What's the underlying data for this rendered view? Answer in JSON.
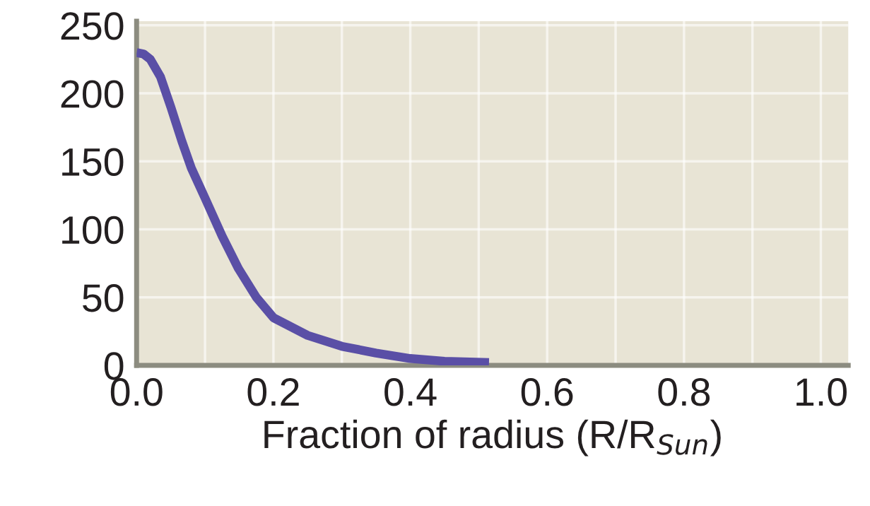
{
  "chart_data": {
    "type": "line",
    "xlabel": "Fraction of radius (R/R$_{Sun}$)",
    "x": [
      0,
      0.01,
      0.02,
      0.035,
      0.05,
      0.066,
      0.08,
      0.1,
      0.125,
      0.149,
      0.175,
      0.2,
      0.25,
      0.3,
      0.35,
      0.4,
      0.45,
      0.515
    ],
    "series": [
      {
        "color": "#5a4fa6",
        "values": [
          230,
          229,
          225,
          212,
          190,
          165,
          145,
          123,
          95,
          71,
          50,
          35,
          22,
          14,
          9,
          5,
          3,
          2
        ]
      }
    ],
    "xlim": [
      0,
      1.04
    ],
    "ylim": [
      0,
      253
    ],
    "xticks": [
      {
        "value": 0,
        "label": "0.0"
      },
      {
        "value": 0.1,
        "label": null
      },
      {
        "value": 0.2,
        "label": "0.2"
      },
      {
        "value": 0.3,
        "label": null
      },
      {
        "value": 0.4,
        "label": "0.4"
      },
      {
        "value": 0.5,
        "label": null
      },
      {
        "value": 0.6,
        "label": "0.6"
      },
      {
        "value": 0.7,
        "label": null
      },
      {
        "value": 0.8,
        "label": "0.8"
      },
      {
        "value": 0.9,
        "label": null
      },
      {
        "value": 1.0,
        "label": "1.0"
      }
    ],
    "yticks": [
      0,
      50,
      100,
      150,
      200,
      250
    ],
    "grid": true,
    "marker": "none",
    "line_style": "solid"
  }
}
